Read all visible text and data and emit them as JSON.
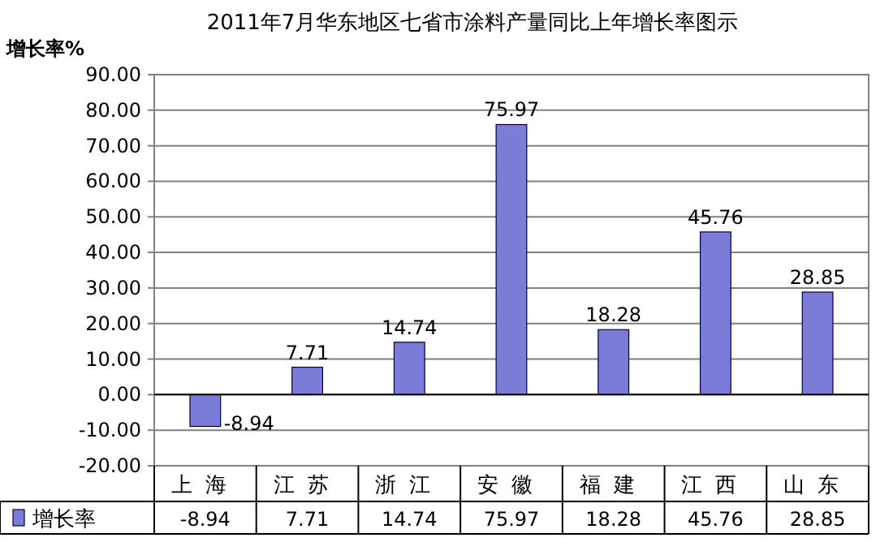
{
  "chart_data": {
    "type": "bar",
    "title": "2011年7月华东地区七省市涂料产量同比上年增长率图示",
    "ylabel": "增长率%",
    "categories": [
      "上海",
      "江苏",
      "浙江",
      "安徽",
      "福建",
      "江西",
      "山东"
    ],
    "series": [
      {
        "name": "增长率",
        "color": "#7b7bd8",
        "values": [
          -8.94,
          7.71,
          14.74,
          75.97,
          18.28,
          45.76,
          28.85
        ]
      }
    ],
    "annotations": [
      {
        "text": "-8.94",
        "x": "上海",
        "y": -8.94
      },
      {
        "text": "7.71",
        "x": "江苏",
        "y": 7.71
      },
      {
        "text": "14.74",
        "x": "浙江",
        "y": 14.74
      },
      {
        "text": "75.97",
        "x": "安徽",
        "y": 75.97
      },
      {
        "text": "18.28",
        "x": "福建",
        "y": 18.28
      },
      {
        "text": "45.76",
        "x": "江西",
        "y": 45.76
      },
      {
        "text": "28.85",
        "x": "山东",
        "y": 28.85
      }
    ],
    "ylim": [
      -20,
      90
    ],
    "yticks": [
      {
        "value": -20,
        "label": "-20.00"
      },
      {
        "value": -10,
        "label": "-10.00"
      },
      {
        "value": 0,
        "label": "0.00"
      },
      {
        "value": 10,
        "label": "10.00"
      },
      {
        "value": 20,
        "label": "20.00"
      },
      {
        "value": 30,
        "label": "30.00"
      },
      {
        "value": 40,
        "label": "40.00"
      },
      {
        "value": 50,
        "label": "50.00"
      },
      {
        "value": 60,
        "label": "60.00"
      },
      {
        "value": 70,
        "label": "70.00"
      },
      {
        "value": 80,
        "label": "80.00"
      },
      {
        "value": 90,
        "label": "90.00"
      }
    ],
    "grid": "y",
    "data_labels": true,
    "legend": "bottom"
  }
}
